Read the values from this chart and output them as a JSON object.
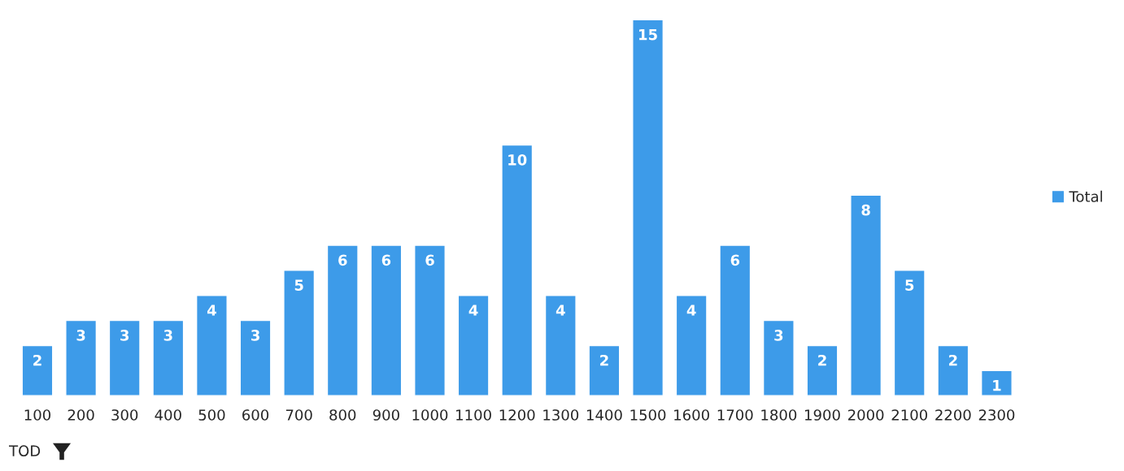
{
  "chart_data": {
    "type": "bar",
    "categories": [
      "100",
      "200",
      "300",
      "400",
      "500",
      "600",
      "700",
      "800",
      "900",
      "1000",
      "1100",
      "1200",
      "1300",
      "1400",
      "1500",
      "1600",
      "1700",
      "1800",
      "1900",
      "2000",
      "2100",
      "2200",
      "2300"
    ],
    "series": [
      {
        "name": "Total",
        "color": "#3d9be9",
        "values": [
          2,
          3,
          3,
          3,
          4,
          3,
          5,
          6,
          6,
          6,
          4,
          10,
          4,
          2,
          15,
          4,
          6,
          3,
          2,
          8,
          5,
          2,
          1
        ]
      }
    ],
    "data_labels": true,
    "legend": "right",
    "grid": false,
    "tick_labels": "x",
    "annotations": [
      "TOD"
    ]
  }
}
